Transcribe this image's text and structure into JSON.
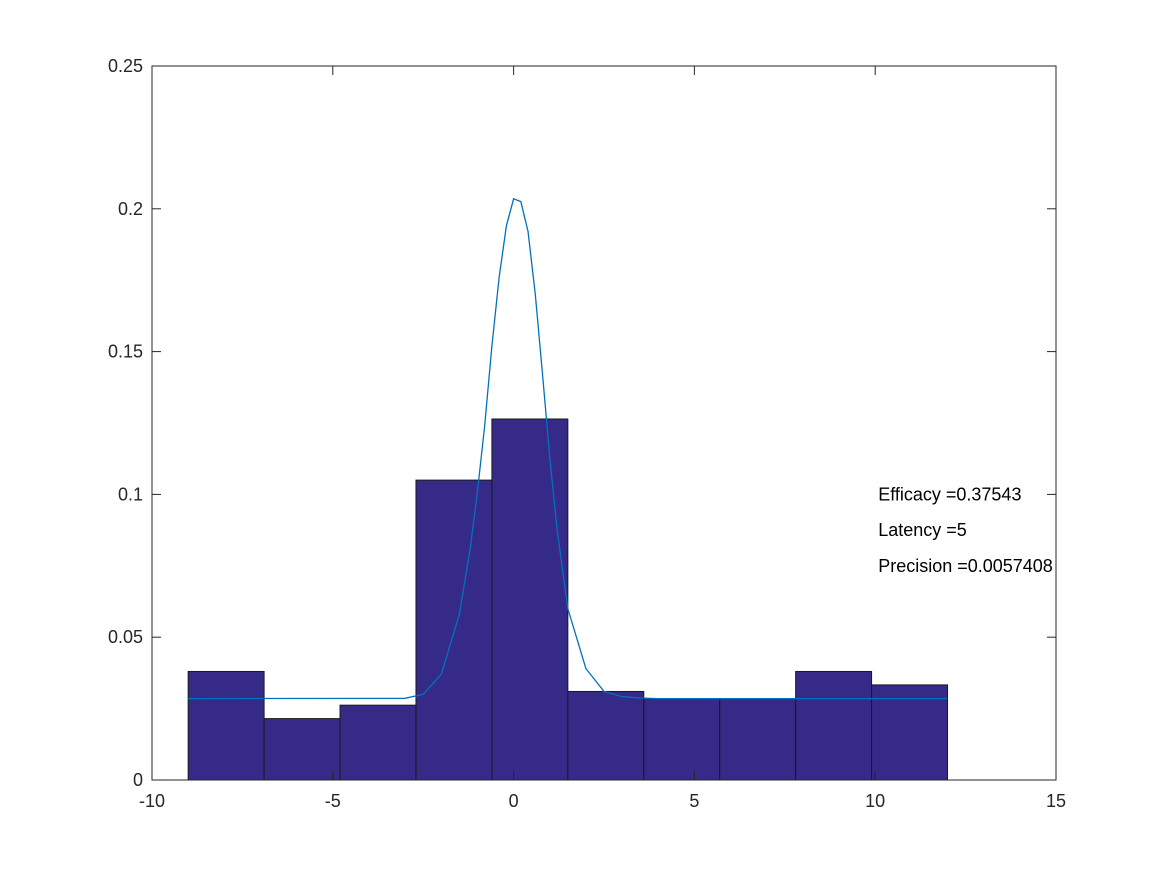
{
  "chart_data": {
    "type": "bar",
    "title": "",
    "xlabel": "",
    "ylabel": "",
    "xlim": [
      -10,
      15
    ],
    "ylim": [
      0,
      0.25
    ],
    "xticks": [
      -10,
      -5,
      0,
      5,
      10,
      15
    ],
    "xtick_labels": [
      "-10",
      "-5",
      "0",
      "5",
      "10",
      "15"
    ],
    "yticks": [
      0,
      0.05,
      0.1,
      0.15,
      0.2,
      0.25
    ],
    "ytick_labels": [
      "0",
      "0.05",
      "0.1",
      "0.15",
      "0.2",
      "0.25"
    ],
    "grid": false,
    "bars": {
      "edges": [
        -9.0,
        -6.9,
        -4.8,
        -2.7,
        -0.6,
        1.5,
        3.6,
        5.7,
        7.8,
        9.9,
        12.0
      ],
      "values": [
        0.038,
        0.0215,
        0.0262,
        0.105,
        0.1264,
        0.031,
        0.0285,
        0.0285,
        0.038,
        0.0333
      ]
    },
    "line": {
      "x": [
        -9.0,
        -3.0,
        -2.5,
        -2.0,
        -1.5,
        -1.2,
        -1.0,
        -0.8,
        -0.6,
        -0.4,
        -0.2,
        0.0,
        0.2,
        0.4,
        0.6,
        0.8,
        1.0,
        1.2,
        1.5,
        2.0,
        2.5,
        3.0,
        3.5,
        4.0,
        12.0
      ],
      "y": [
        0.0285,
        0.0286,
        0.03,
        0.037,
        0.058,
        0.081,
        0.101,
        0.124,
        0.152,
        0.176,
        0.194,
        0.2035,
        0.2025,
        0.192,
        0.17,
        0.142,
        0.113,
        0.088,
        0.06,
        0.039,
        0.031,
        0.0292,
        0.0287,
        0.0285,
        0.0285
      ]
    },
    "colors": {
      "bar_fill": "#352a87",
      "bar_edge": "#1a1a1a",
      "line": "#0072bd",
      "axes": "#262626"
    },
    "annotations": [
      {
        "text": "Efficacy =0.37543",
        "x": 10,
        "y": 0.1
      },
      {
        "text": "Latency =5",
        "x": 10,
        "y": 0.0875
      },
      {
        "text": "Precision =0.0057408",
        "x": 10,
        "y": 0.075
      }
    ]
  }
}
